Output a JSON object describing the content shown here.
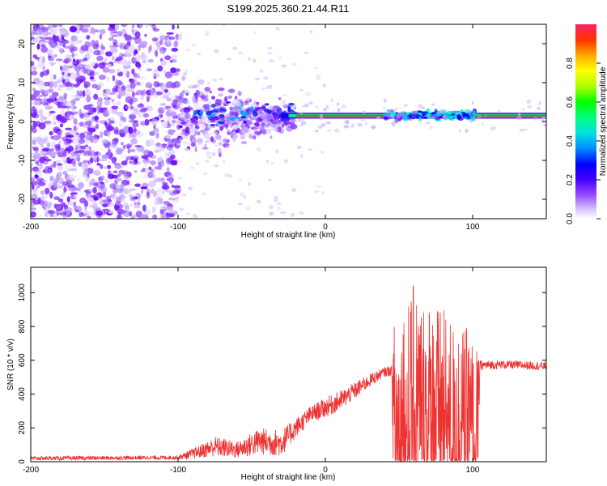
{
  "title": "S199.2025.360.21.44.R11",
  "chart_data": [
    {
      "type": "heatmap",
      "title": "S199.2025.360.21.44.R11",
      "xlabel": "Height of straight line (km)",
      "ylabel": "Frequency (Hz)",
      "xlim": [
        -200,
        150
      ],
      "ylim": [
        -25,
        25
      ],
      "x_ticks": [
        "-200",
        "-100",
        "0",
        "100"
      ],
      "y_ticks": [
        "20",
        "10",
        "0",
        "-10",
        "-20"
      ],
      "colorbar": {
        "label": "Normalized spectral amplitude",
        "range": [
          0,
          1
        ],
        "ticks": [
          "0.0",
          "0.2",
          "0.4",
          "0.6",
          "0.8"
        ],
        "colors": [
          "#ffffff",
          "#b08fff",
          "#7a00ff",
          "#0000ff",
          "#00bfff",
          "#00ffbf",
          "#00ff00",
          "#bfff00",
          "#ffff00",
          "#ffbf00",
          "#ff7f00",
          "#ff0000",
          "#ff1f6f"
        ]
      },
      "features": {
        "noise_region_km": [
          -200,
          -100
        ],
        "transition_region_km": [
          -100,
          -20
        ],
        "signal_line_hz": 1.5,
        "signal_region_km": [
          -20,
          150
        ]
      }
    },
    {
      "type": "line",
      "xlabel": "Height of straight line (km)",
      "ylabel": "SNR (10 * v/v)",
      "xlim": [
        -200,
        150
      ],
      "ylim": [
        0,
        1150
      ],
      "x_ticks": [
        "-200",
        "-100",
        "0",
        "100"
      ],
      "y_ticks": [
        "0",
        "200",
        "400",
        "600",
        "800",
        "1000"
      ],
      "color": "#ee3333",
      "envelope": {
        "x": [
          -200,
          -150,
          -100,
          -85,
          -75,
          -60,
          -45,
          -30,
          -20,
          -10,
          0,
          10,
          20,
          30,
          40,
          45,
          47,
          60,
          80,
          95,
          100,
          103,
          105,
          120,
          150
        ],
        "base": [
          20,
          22,
          25,
          60,
          90,
          70,
          120,
          110,
          200,
          280,
          320,
          360,
          420,
          480,
          530,
          540,
          180,
          300,
          250,
          200,
          150,
          120,
          570,
          575,
          565
        ],
        "noise": [
          12,
          12,
          12,
          40,
          60,
          50,
          80,
          80,
          60,
          50,
          60,
          60,
          50,
          40,
          30,
          30,
          700,
          750,
          650,
          600,
          600,
          550,
          30,
          25,
          25
        ]
      }
    }
  ]
}
